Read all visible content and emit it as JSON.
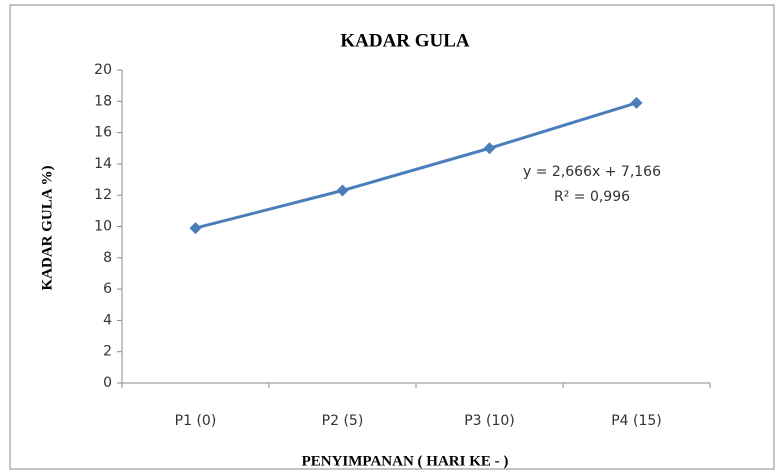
{
  "chart_data": {
    "type": "line",
    "title": "KADAR GULA",
    "x_label": "PENYIMPANAN ( HARI KE - )",
    "y_label": "KADAR GULA %)",
    "categories": [
      "P1 (0)",
      "P2 (5)",
      "P3 (10)",
      "P4 (15)"
    ],
    "series": [
      {
        "name": "KADAR GULA",
        "color": "#4a7ebb",
        "values": [
          9.9,
          12.3,
          15.0,
          17.9
        ]
      }
    ],
    "ylim": [
      0,
      20
    ],
    "yticks": [
      0,
      2,
      4,
      6,
      8,
      10,
      12,
      14,
      16,
      18,
      20
    ],
    "grid": false,
    "annotations": [
      "y = 2,666x + 7,166",
      "R² = 0,996"
    ]
  }
}
